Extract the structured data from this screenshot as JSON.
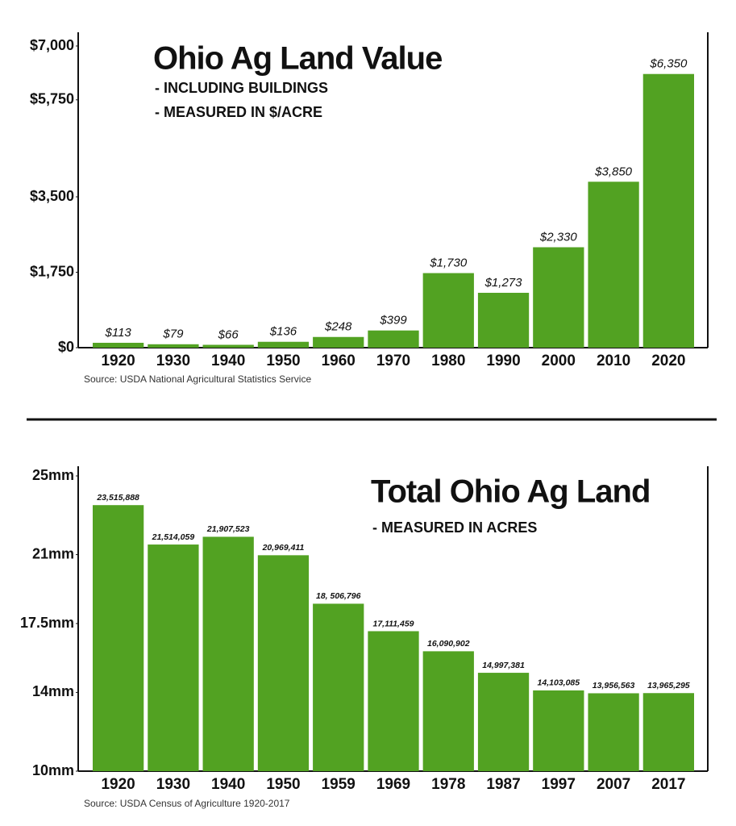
{
  "chart_data": [
    {
      "type": "bar",
      "title": "Ohio Ag Land Value",
      "subtitle": [
        "- INCLUDING BUILDINGS",
        "- MEASURED IN $/ACRE"
      ],
      "source": "Source: USDA National Agricultural Statistics Service",
      "categories": [
        "1920",
        "1930",
        "1940",
        "1950",
        "1960",
        "1970",
        "1980",
        "1990",
        "2000",
        "2010",
        "2020"
      ],
      "values": [
        113,
        79,
        66,
        136,
        248,
        399,
        1730,
        1273,
        2330,
        3850,
        6350
      ],
      "value_labels": [
        "$113",
        "$79",
        "$66",
        "$136",
        "$248",
        "$399",
        "$1,730",
        "$1,273",
        "$2,330",
        "$3,850",
        "$6,350"
      ],
      "color": "#52a222",
      "ylim": [
        0,
        7000
      ],
      "yticks": [
        {
          "value": 0,
          "label": "$0"
        },
        {
          "value": 1750,
          "label": "$1,750"
        },
        {
          "value": 3500,
          "label": "$3,500"
        },
        {
          "value": 5750,
          "label": "$5,750"
        },
        {
          "value": 7000,
          "label": "$7,000"
        }
      ],
      "grid": false
    },
    {
      "type": "bar",
      "title": "Total Ohio Ag Land",
      "subtitle": [
        "- MEASURED IN ACRES"
      ],
      "source": "Source: USDA Census of Agriculture 1920-2017",
      "categories": [
        "1920",
        "1930",
        "1940",
        "1950",
        "1959",
        "1969",
        "1978",
        "1987",
        "1997",
        "2007",
        "2017"
      ],
      "values": [
        23515888,
        21514059,
        21907523,
        20969411,
        18506796,
        17111459,
        16090902,
        14997381,
        14103085,
        13956563,
        13965295
      ],
      "value_labels": [
        "23,515,888",
        "21,514,059",
        "21,907,523",
        "20,969,411",
        "18, 506,796",
        "17,111,459",
        "16,090,902",
        "14,997,381",
        "14,103,085",
        "13,956,563",
        "13,965,295"
      ],
      "color": "#52a222",
      "ylim": [
        10000000,
        25000000
      ],
      "yticks": [
        {
          "value": 10000000,
          "label": "10mm"
        },
        {
          "value": 14000000,
          "label": "14mm"
        },
        {
          "value": 17500000,
          "label": "17.5mm"
        },
        {
          "value": 21000000,
          "label": "21mm"
        },
        {
          "value": 25000000,
          "label": "25mm"
        }
      ],
      "grid": false
    }
  ]
}
